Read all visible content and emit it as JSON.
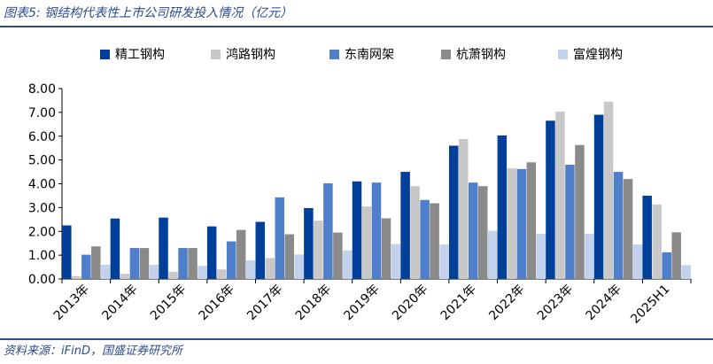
{
  "figure": {
    "title": "图表5:  钢结构代表性上市公司研发投入情况（亿元）",
    "source": "资料来源：iFinD，国盛证券研究所"
  },
  "chart_data": {
    "type": "bar",
    "title": "",
    "xlabel": "",
    "ylabel": "",
    "ylim": [
      0,
      8
    ],
    "yticks": [
      "0.00",
      "1.00",
      "2.00",
      "3.00",
      "4.00",
      "5.00",
      "6.00",
      "7.00",
      "8.00"
    ],
    "grid": false,
    "legend_position": "top",
    "categories": [
      "2013年",
      "2014年",
      "2015年",
      "2016年",
      "2017年",
      "2018年",
      "2019年",
      "2020年",
      "2021年",
      "2022年",
      "2023年",
      "2024年",
      "2025H1"
    ],
    "series": [
      {
        "name": "精工钢构",
        "color": "#003f9a",
        "values": [
          2.25,
          2.54,
          2.58,
          2.21,
          2.4,
          2.98,
          4.1,
          4.5,
          5.6,
          6.03,
          6.65,
          6.9,
          3.5
        ]
      },
      {
        "name": "鸿路钢构",
        "color": "#c8c8c8",
        "values": [
          0.12,
          0.22,
          0.3,
          0.4,
          0.88,
          2.45,
          3.05,
          3.9,
          5.88,
          4.65,
          7.03,
          7.45,
          3.13
        ]
      },
      {
        "name": "东南网架",
        "color": "#4f7fcb",
        "values": [
          1.02,
          1.3,
          1.3,
          1.58,
          3.43,
          4.02,
          4.05,
          3.32,
          4.05,
          4.62,
          4.8,
          4.5,
          1.12
        ]
      },
      {
        "name": "杭萧钢构",
        "color": "#8a8a8a",
        "values": [
          1.37,
          1.3,
          1.3,
          2.06,
          1.88,
          1.95,
          2.55,
          3.18,
          3.9,
          4.9,
          5.63,
          4.2,
          1.96
        ]
      },
      {
        "name": "富煌钢构",
        "color": "#c3d2ec",
        "values": [
          0.6,
          0.6,
          0.55,
          0.78,
          1.03,
          1.2,
          1.47,
          1.45,
          2.02,
          1.9,
          1.9,
          1.45,
          0.58
        ]
      }
    ]
  }
}
